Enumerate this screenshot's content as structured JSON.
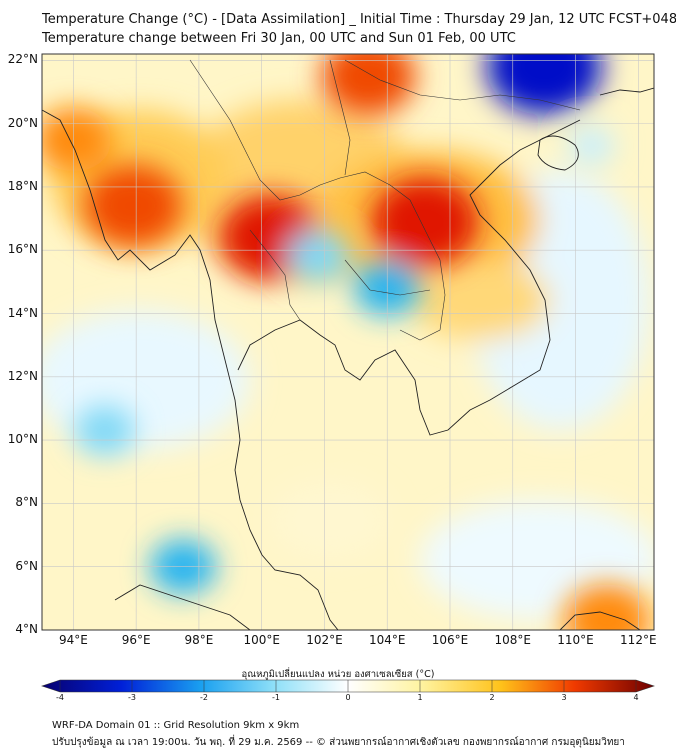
{
  "title": {
    "line1": "Temperature Change (°C) - [Data Assimilation] _ Initial Time : Thursday 29 Jan, 12 UTC FCST+048",
    "line2": "Temperature change between Fri 30 Jan, 00 UTC and Sun 01 Feb, 00 UTC"
  },
  "map": {
    "lat_labels": [
      "22°N",
      "20°N",
      "18°N",
      "16°N",
      "14°N",
      "12°N",
      "10°N",
      "8°N",
      "6°N",
      "4°N"
    ],
    "lon_labels": [
      "94°E",
      "96°E",
      "98°E",
      "100°E",
      "102°E",
      "104°E",
      "106°E",
      "108°E",
      "110°E",
      "112°E"
    ],
    "lat_range": [
      4,
      22.2
    ],
    "lon_range": [
      93,
      112.5
    ],
    "warm_spots": [
      {
        "lon": 95.9,
        "lat": 17.4,
        "value": 3.0
      },
      {
        "lon": 100.3,
        "lat": 16.4,
        "value": 3.2
      },
      {
        "lon": 105.2,
        "lat": 16.9,
        "value": 3.4
      },
      {
        "lon": 103.4,
        "lat": 21.5,
        "value": 2.8
      },
      {
        "lon": 94.0,
        "lat": 19.5,
        "value": 2.0
      },
      {
        "lon": 111.0,
        "lat": 4.3,
        "value": 2.5
      }
    ],
    "cool_spots": [
      {
        "lon": 109.0,
        "lat": 21.8,
        "value": -3.8
      },
      {
        "lon": 104.0,
        "lat": 14.8,
        "value": -1.5
      },
      {
        "lon": 101.8,
        "lat": 15.8,
        "value": -1.3
      },
      {
        "lon": 95.0,
        "lat": 10.3,
        "value": -1.2
      },
      {
        "lon": 97.5,
        "lat": 6.0,
        "value": -1.5
      },
      {
        "lon": 110.5,
        "lat": 19.3,
        "value": -0.6
      }
    ]
  },
  "colorbar": {
    "title": "อุณหภูมิเปลี่ยนแปลง หน่วย องศาเซลเซียส (°C)",
    "min": -4,
    "max": 4,
    "ticks": [
      "-4",
      "-3",
      "-2",
      "-1",
      "0",
      "1",
      "2",
      "3",
      "4"
    ]
  },
  "footer": {
    "line1": "WRF-DA Domain 01 :: Grid Resolution 9km x 9km",
    "line2": "ปรับปรุงข้อมูล ณ เวลา 19:00น. วัน พฤ. ที่ 29 ม.ค. 2569 -- © ส่วนพยากรณ์อากาศเชิงตัวเลข กองพยากรณ์อากาศ กรมอุตุนิยมวิทยา"
  }
}
